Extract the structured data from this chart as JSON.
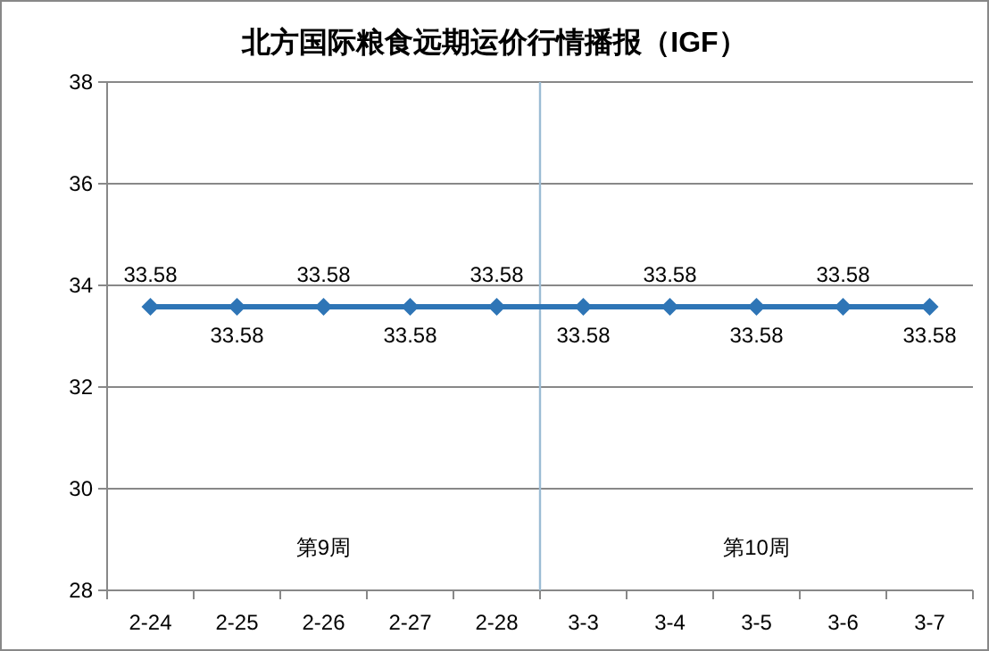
{
  "chart_data": {
    "type": "line",
    "title": "北方国际粮食远期运价行情播报（IGF）",
    "categories": [
      "2-24",
      "2-25",
      "2-26",
      "2-27",
      "2-28",
      "3-3",
      "3-4",
      "3-5",
      "3-6",
      "3-7"
    ],
    "series": [
      {
        "color": "#2e75b6",
        "values": [
          33.58,
          33.58,
          33.58,
          33.58,
          33.58,
          33.58,
          33.58,
          33.58,
          33.58,
          33.58
        ]
      }
    ],
    "ylim": [
      28,
      38
    ],
    "yticks": [
      28,
      30,
      32,
      34,
      36,
      38
    ],
    "grid": "y",
    "marker": "diamond",
    "line_style": "solid",
    "data_labels": true,
    "ref_lines": [
      {
        "axis": "x",
        "value": "2-28",
        "color": "#9cbcd4"
      }
    ],
    "annotations": [
      "第9周",
      "第10周"
    ]
  }
}
